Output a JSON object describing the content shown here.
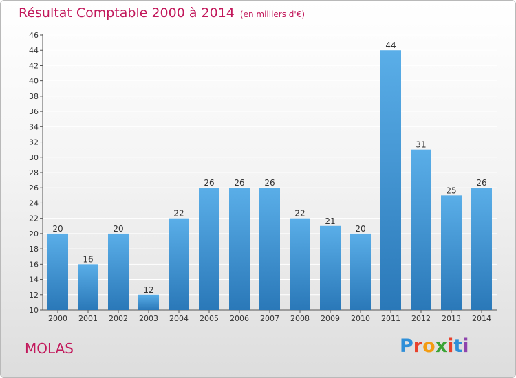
{
  "title": "Résultat Comptable 2000 à 2014",
  "subtitle": "(en milliers d'€)",
  "commune": "MOLAS",
  "logo": {
    "text": "Proxiti",
    "letter_colors": [
      "#2f8fd8",
      "#e8412c",
      "#f39c12",
      "#3aa335",
      "#e8412c",
      "#2f8fd8",
      "#8e44ad"
    ]
  },
  "colors": {
    "bar_top": "#5aaee8",
    "bar_bottom": "#2a78b8",
    "title": "#c2185b",
    "grid": "#ffffff",
    "axis": "#555555"
  },
  "chart_data": {
    "type": "bar",
    "categories": [
      "2000",
      "2001",
      "2002",
      "2003",
      "2004",
      "2005",
      "2006",
      "2007",
      "2008",
      "2009",
      "2010",
      "2011",
      "2012",
      "2013",
      "2014"
    ],
    "values": [
      20,
      16,
      20,
      12,
      22,
      26,
      26,
      26,
      22,
      21,
      20,
      44,
      31,
      25,
      26
    ],
    "ylim": [
      10,
      46
    ],
    "yticks": [
      10,
      12,
      14,
      16,
      18,
      20,
      22,
      24,
      26,
      28,
      30,
      32,
      34,
      36,
      38,
      40,
      42,
      44,
      46
    ],
    "grid": true,
    "data_labels": true
  }
}
